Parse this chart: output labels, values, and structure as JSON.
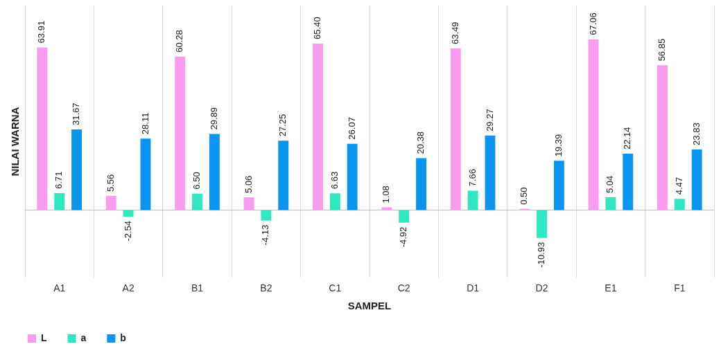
{
  "chart_data": {
    "type": "bar",
    "xlabel": "SAMPEL",
    "ylabel": "NILAI WARNA",
    "categories": [
      "A1",
      "A2",
      "B1",
      "B2",
      "C1",
      "C2",
      "D1",
      "D2",
      "E1",
      "F1"
    ],
    "series": [
      {
        "name": "L",
        "color": "#f99cf0",
        "values": [
          63.91,
          5.56,
          60.28,
          5.06,
          65.4,
          1.08,
          63.49,
          0.5,
          67.06,
          56.85
        ],
        "value_labels": [
          "63.91",
          "5.56",
          "60.28",
          "5.06",
          "65.40",
          "1.08",
          "63.49",
          "0.50",
          "67.06",
          "56.85"
        ]
      },
      {
        "name": "a",
        "color": "#2ee8c0",
        "values": [
          6.71,
          -2.54,
          6.5,
          -4.13,
          6.63,
          -4.92,
          7.66,
          -10.93,
          5.04,
          4.47
        ],
        "value_labels": [
          "6.71",
          "-2.54",
          "6.50",
          "-4.13",
          "6.63",
          "-4.92",
          "7.66",
          "-10.93",
          "5.04",
          "4.47"
        ]
      },
      {
        "name": "b",
        "color": "#0a96f0",
        "values": [
          31.67,
          28.11,
          29.89,
          27.25,
          26.07,
          20.38,
          29.27,
          19.39,
          22.14,
          23.83
        ],
        "value_labels": [
          "31.67",
          "28.11",
          "29.89",
          "27.25",
          "26.07",
          "20.38",
          "29.27",
          "19.39",
          "22.14",
          "23.83"
        ]
      }
    ],
    "grid": "x",
    "legend": "bottom left"
  }
}
